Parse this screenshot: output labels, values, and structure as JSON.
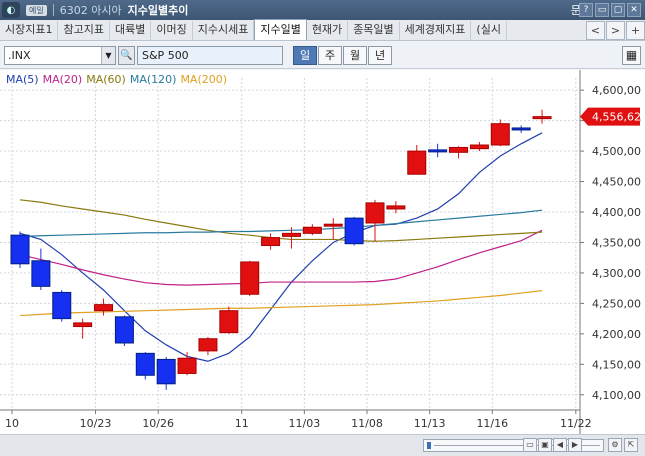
{
  "window": {
    "logo_glyph": "◐",
    "badge": "예일",
    "code": "6302 아시아",
    "title": "지수일별추이",
    "help": "문의",
    "buttons": [
      "?",
      "▭",
      "▢",
      "✕"
    ]
  },
  "tabs": [
    {
      "label": "시장지표1",
      "active": false
    },
    {
      "label": "참고지표",
      "active": false
    },
    {
      "label": "대륙별",
      "active": false
    },
    {
      "label": "이머징",
      "active": false
    },
    {
      "label": "지수시세표",
      "active": false
    },
    {
      "label": "지수일별",
      "active": true
    },
    {
      "label": "현재가",
      "active": false
    },
    {
      "label": "종목일별",
      "active": false
    },
    {
      "label": "세계경제지표",
      "active": false
    },
    {
      "label": "(실시",
      "active": false
    }
  ],
  "tab_nav": [
    "<",
    ">",
    "+"
  ],
  "toolbar": {
    "symbol": ".INX",
    "name": "S&P 500",
    "periods": [
      "일",
      "주",
      "월",
      "년"
    ],
    "active_period": "일",
    "search_glyph": "🔍",
    "grid_glyph": "▦"
  },
  "legend": [
    {
      "label": "MA(5)",
      "color": "#1f3fb0"
    },
    {
      "label": "MA(20)",
      "color": "#c0208a"
    },
    {
      "label": "MA(60)",
      "color": "#8a7a10"
    },
    {
      "label": "MA(120)",
      "color": "#2a7aa0"
    },
    {
      "label": "MA(200)",
      "color": "#e0a020"
    }
  ],
  "chart_data": {
    "type": "candlestick",
    "ylim": [
      4075,
      4620
    ],
    "y_ticks": [
      "4,100,00",
      "4,150,00",
      "4,200,00",
      "4,250,00",
      "4,300,00",
      "4,350,00",
      "4,400,00",
      "4,450,00",
      "4,500,00",
      "4,550,00",
      "4,600,00"
    ],
    "y_tick_values": [
      4100,
      4150,
      4200,
      4250,
      4300,
      4350,
      4400,
      4450,
      4500,
      4550,
      4600
    ],
    "x_labels": [
      "10",
      "10/23",
      "10/26",
      "11",
      "11/03",
      "11/08",
      "11/13",
      "11/16",
      "11/22"
    ],
    "x_label_index": [
      0,
      4,
      7,
      11,
      14,
      17,
      20,
      23,
      27
    ],
    "current_price": "4,556,62",
    "current_value": 4556.62,
    "candles": [
      {
        "o": 4362,
        "h": 4368,
        "c": 4315,
        "l": 4308
      },
      {
        "o": 4320,
        "h": 4340,
        "c": 4278,
        "l": 4272
      },
      {
        "o": 4268,
        "h": 4272,
        "c": 4225,
        "l": 4220
      },
      {
        "o": 4212,
        "h": 4225,
        "c": 4218,
        "l": 4192
      },
      {
        "o": 4238,
        "h": 4258,
        "c": 4248,
        "l": 4230
      },
      {
        "o": 4228,
        "h": 4230,
        "c": 4185,
        "l": 4180
      },
      {
        "o": 4168,
        "h": 4170,
        "c": 4132,
        "l": 4125
      },
      {
        "o": 4158,
        "h": 4162,
        "c": 4118,
        "l": 4108
      },
      {
        "o": 4135,
        "h": 4170,
        "c": 4160,
        "l": 4132
      },
      {
        "o": 4172,
        "h": 4195,
        "c": 4192,
        "l": 4165
      },
      {
        "o": 4202,
        "h": 4245,
        "c": 4238,
        "l": 4200
      },
      {
        "o": 4265,
        "h": 4320,
        "c": 4318,
        "l": 4262
      },
      {
        "o": 4345,
        "h": 4365,
        "c": 4358,
        "l": 4338
      },
      {
        "o": 4360,
        "h": 4375,
        "c": 4365,
        "l": 4340
      },
      {
        "o": 4365,
        "h": 4380,
        "c": 4375,
        "l": 4362
      },
      {
        "o": 4378,
        "h": 4390,
        "c": 4380,
        "l": 4355
      },
      {
        "o": 4390,
        "h": 4392,
        "c": 4348,
        "l": 4345
      },
      {
        "o": 4382,
        "h": 4420,
        "c": 4415,
        "l": 4352
      },
      {
        "o": 4405,
        "h": 4418,
        "c": 4410,
        "l": 4398
      },
      {
        "o": 4462,
        "h": 4510,
        "c": 4500,
        "l": 4462
      },
      {
        "o": 4502,
        "h": 4512,
        "c": 4500,
        "l": 4490
      },
      {
        "o": 4498,
        "h": 4508,
        "c": 4506,
        "l": 4488
      },
      {
        "o": 4504,
        "h": 4515,
        "c": 4510,
        "l": 4500
      },
      {
        "o": 4510,
        "h": 4552,
        "c": 4545,
        "l": 4508
      },
      {
        "o": 4538,
        "h": 4542,
        "c": 4535,
        "l": 4530
      },
      {
        "o": 4555,
        "h": 4568,
        "c": 4556.6,
        "l": 4545
      }
    ],
    "ma": [
      {
        "name": "MA(5)",
        "values": [
          4365,
          4355,
          4330,
          4300,
          4272,
          4238,
          4205,
          4182,
          4163,
          4155,
          4168,
          4195,
          4240,
          4285,
          4320,
          4350,
          4366,
          4378,
          4380,
          4390,
          4405,
          4430,
          4465,
          4492,
          4512,
          4530
        ]
      },
      {
        "name": "MA(20)",
        "values": [
          4330,
          4322,
          4314,
          4305,
          4297,
          4290,
          4284,
          4281,
          4280,
          4281,
          4282,
          4283,
          4285,
          4285,
          4285,
          4285,
          4285,
          4286,
          4290,
          4300,
          4310,
          4322,
          4333,
          4343,
          4353,
          4370
        ]
      },
      {
        "name": "MA(60)",
        "values": [
          4420,
          4416,
          4410,
          4405,
          4400,
          4395,
          4388,
          4382,
          4376,
          4370,
          4365,
          4362,
          4358,
          4355,
          4355,
          4355,
          4353,
          4352,
          4353,
          4355,
          4357,
          4359,
          4361,
          4363,
          4365,
          4367
        ]
      },
      {
        "name": "MA(120)",
        "values": [
          4360,
          4361,
          4362,
          4363,
          4364,
          4365,
          4366,
          4366,
          4367,
          4367,
          4368,
          4368,
          4369,
          4370,
          4371,
          4373,
          4375,
          4378,
          4381,
          4384,
          4387,
          4390,
          4393,
          4396,
          4399,
          4403
        ]
      },
      {
        "name": "MA(200)",
        "values": [
          4230,
          4232,
          4234,
          4235,
          4236,
          4237,
          4238,
          4239,
          4240,
          4241,
          4242,
          4242,
          4243,
          4244,
          4245,
          4246,
          4247,
          4248,
          4250,
          4252,
          4254,
          4257,
          4260,
          4263,
          4267,
          4271
        ]
      }
    ]
  }
}
